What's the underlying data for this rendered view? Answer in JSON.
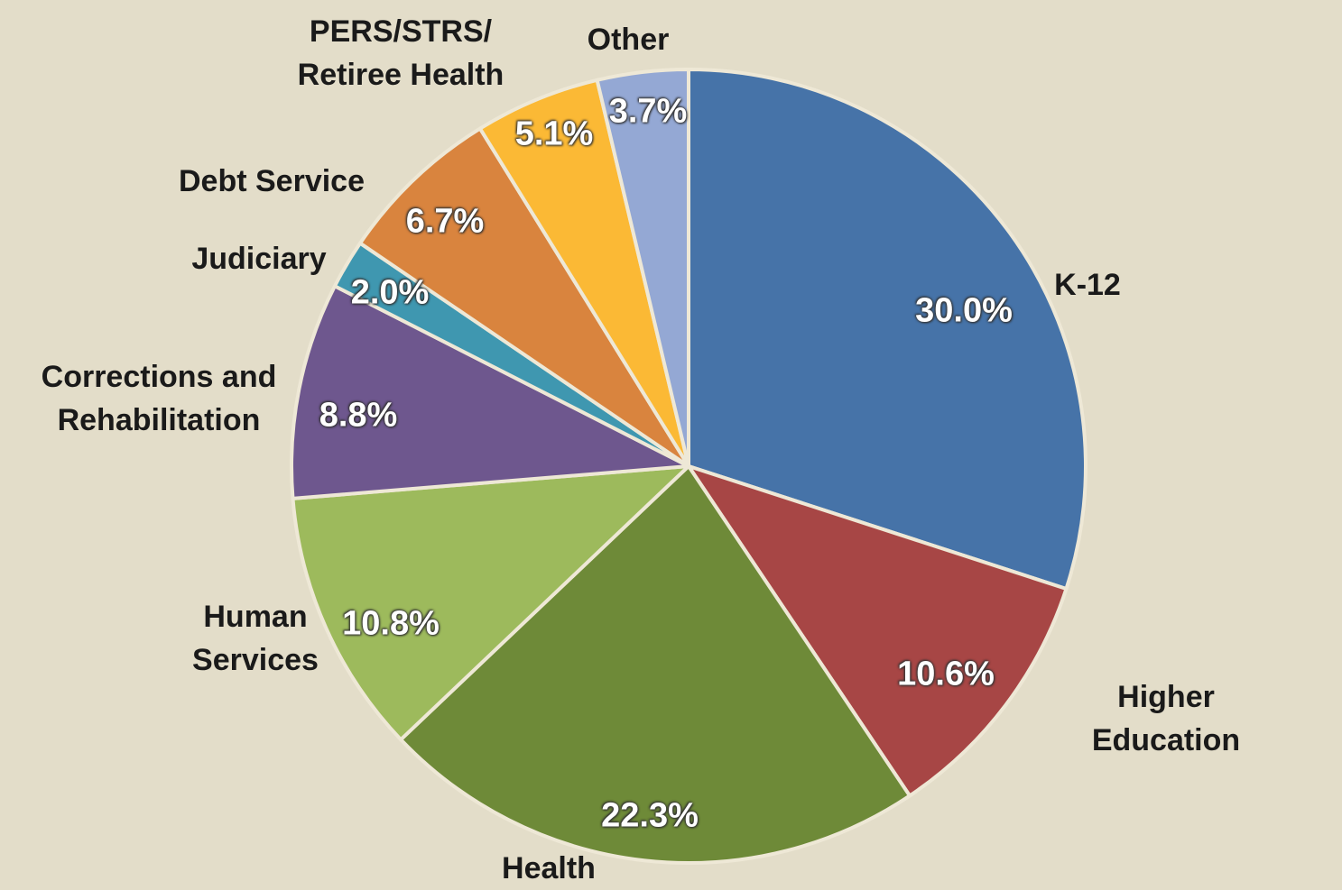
{
  "chart_data": {
    "type": "pie",
    "categories": [
      "K-12",
      "Higher Education",
      "Health",
      "Human Services",
      "Corrections and Rehabilitation",
      "Judiciary",
      "Debt Service",
      "PERS/STRS/ Retiree Health",
      "Other"
    ],
    "values": [
      30.0,
      10.6,
      22.3,
      10.8,
      8.8,
      2.0,
      6.7,
      5.1,
      3.7
    ],
    "value_labels": [
      "30.0%",
      "10.6%",
      "22.3%",
      "10.8%",
      "8.8%",
      "2.0%",
      "6.7%",
      "5.1%",
      "3.7%"
    ],
    "colors": [
      "#4673a8",
      "#a74645",
      "#6e8a38",
      "#9dba5c",
      "#6e578e",
      "#3f97b0",
      "#d9843e",
      "#fbb935",
      "#94a8d4"
    ]
  }
}
